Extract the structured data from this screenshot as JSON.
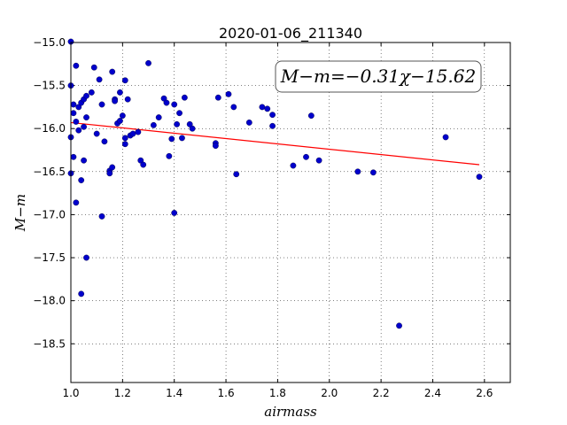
{
  "chart_data": {
    "type": "scatter",
    "title": "2020-01-06_211340",
    "xlabel": "airmass",
    "ylabel": "M−m",
    "xlim": [
      1.0,
      2.7
    ],
    "ylim": [
      -15.0,
      -18.95
    ],
    "y_inverted": true,
    "x_ticks": [
      1.0,
      1.2,
      1.4,
      1.6,
      1.8,
      2.0,
      2.2,
      2.4,
      2.6
    ],
    "x_tick_labels": [
      "1.0",
      "1.2",
      "1.4",
      "1.6",
      "1.8",
      "2.0",
      "2.2",
      "2.4",
      "2.6"
    ],
    "y_ticks": [
      -15.0,
      -15.5,
      -16.0,
      -16.5,
      -17.0,
      -17.5,
      -18.0,
      -18.5
    ],
    "y_tick_labels": [
      "−15.0",
      "−15.5",
      "−16.0",
      "−16.5",
      "−17.0",
      "−17.5",
      "−18.0",
      "−18.5"
    ],
    "grid": true,
    "annotation": "M−m=−0.31χ−15.62",
    "series": [
      {
        "type": "scatter",
        "color": "#0000cc",
        "points": [
          [
            1.0,
            -14.99
          ],
          [
            1.0,
            -15.5
          ],
          [
            1.0,
            -16.1
          ],
          [
            1.0,
            -16.52
          ],
          [
            1.01,
            -15.72
          ],
          [
            1.01,
            -15.82
          ],
          [
            1.01,
            -16.33
          ],
          [
            1.02,
            -15.27
          ],
          [
            1.02,
            -15.92
          ],
          [
            1.02,
            -16.86
          ],
          [
            1.03,
            -15.75
          ],
          [
            1.03,
            -16.02
          ],
          [
            1.04,
            -16.6
          ],
          [
            1.04,
            -17.92
          ],
          [
            1.04,
            -15.7
          ],
          [
            1.05,
            -15.98
          ],
          [
            1.05,
            -16.37
          ],
          [
            1.05,
            -15.66
          ],
          [
            1.06,
            -15.62
          ],
          [
            1.06,
            -15.87
          ],
          [
            1.06,
            -17.5
          ],
          [
            1.08,
            -15.58
          ],
          [
            1.09,
            -15.29
          ],
          [
            1.1,
            -16.06
          ],
          [
            1.11,
            -15.43
          ],
          [
            1.12,
            -15.72
          ],
          [
            1.12,
            -17.02
          ],
          [
            1.13,
            -16.15
          ],
          [
            1.15,
            -16.49
          ],
          [
            1.15,
            -16.52
          ],
          [
            1.16,
            -16.45
          ],
          [
            1.16,
            -15.34
          ],
          [
            1.17,
            -15.66
          ],
          [
            1.17,
            -15.68
          ],
          [
            1.18,
            -15.94
          ],
          [
            1.19,
            -15.58
          ],
          [
            1.19,
            -15.91
          ],
          [
            1.2,
            -15.85
          ],
          [
            1.21,
            -15.44
          ],
          [
            1.21,
            -16.11
          ],
          [
            1.21,
            -16.18
          ],
          [
            1.22,
            -15.66
          ],
          [
            1.23,
            -16.08
          ],
          [
            1.24,
            -16.06
          ],
          [
            1.26,
            -16.04
          ],
          [
            1.27,
            -16.37
          ],
          [
            1.28,
            -16.42
          ],
          [
            1.3,
            -15.24
          ],
          [
            1.32,
            -15.96
          ],
          [
            1.34,
            -15.87
          ],
          [
            1.36,
            -15.65
          ],
          [
            1.37,
            -15.7
          ],
          [
            1.38,
            -16.32
          ],
          [
            1.39,
            -16.12
          ],
          [
            1.4,
            -16.98
          ],
          [
            1.4,
            -15.72
          ],
          [
            1.41,
            -15.95
          ],
          [
            1.42,
            -15.82
          ],
          [
            1.43,
            -16.11
          ],
          [
            1.44,
            -15.64
          ],
          [
            1.46,
            -15.95
          ],
          [
            1.47,
            -16.0
          ],
          [
            1.56,
            -16.17
          ],
          [
            1.56,
            -16.2
          ],
          [
            1.57,
            -15.64
          ],
          [
            1.61,
            -15.6
          ],
          [
            1.63,
            -15.75
          ],
          [
            1.64,
            -16.53
          ],
          [
            1.69,
            -15.93
          ],
          [
            1.74,
            -15.75
          ],
          [
            1.76,
            -15.77
          ],
          [
            1.78,
            -15.84
          ],
          [
            1.78,
            -15.97
          ],
          [
            1.86,
            -16.43
          ],
          [
            1.91,
            -16.33
          ],
          [
            1.93,
            -15.85
          ],
          [
            1.96,
            -16.37
          ],
          [
            2.11,
            -16.5
          ],
          [
            2.17,
            -16.51
          ],
          [
            2.27,
            -18.29
          ],
          [
            2.45,
            -16.1
          ],
          [
            2.58,
            -16.56
          ]
        ]
      },
      {
        "type": "line",
        "color": "#ff0000",
        "slope": -0.31,
        "intercept": -15.62,
        "x_range": [
          1.0,
          2.58
        ]
      }
    ]
  }
}
